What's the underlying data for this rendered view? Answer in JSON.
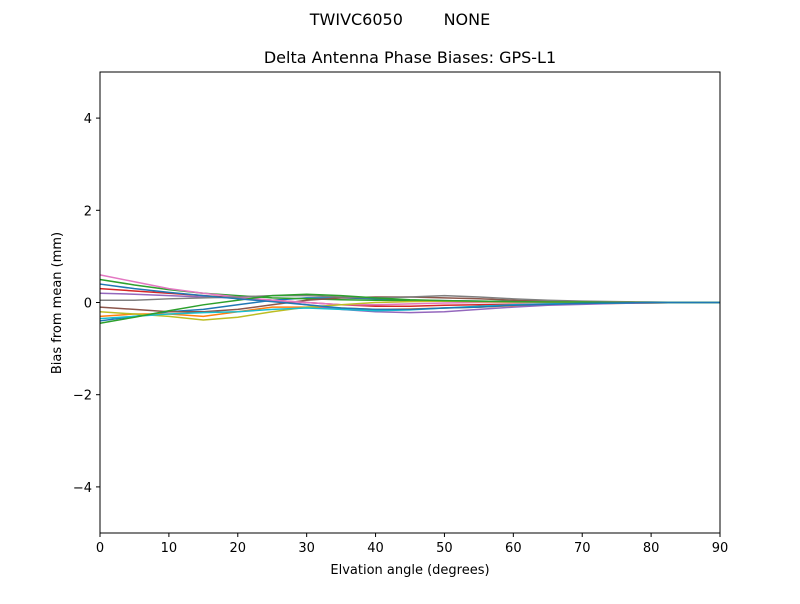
{
  "chart_data": {
    "type": "line",
    "suptitle": "TWIVC6050        NONE",
    "title": "Delta Antenna Phase Biases: GPS-L1",
    "xlabel": "Elvation angle (degrees)",
    "ylabel": "Bias from mean (mm)",
    "xlim": [
      0,
      90
    ],
    "xticks": [
      0,
      10,
      20,
      30,
      40,
      50,
      60,
      70,
      80,
      90
    ],
    "ylim": [
      -5,
      5
    ],
    "yticks": [
      {
        "value": -4,
        "label": "−4"
      },
      {
        "value": -2,
        "label": "−2"
      },
      0,
      2,
      4
    ],
    "grid": false,
    "x": [
      0,
      5,
      10,
      15,
      20,
      25,
      30,
      35,
      40,
      45,
      50,
      55,
      60,
      65,
      70,
      75,
      80,
      85,
      90
    ],
    "series": [
      {
        "color": "#1f77b4",
        "values": [
          -0.4,
          -0.3,
          -0.2,
          -0.15,
          -0.05,
          0.05,
          0.1,
          0.1,
          0.08,
          0.05,
          0.04,
          0.03,
          0.02,
          0.01,
          0.01,
          0.01,
          0,
          0,
          0
        ]
      },
      {
        "color": "#ff7f0e",
        "values": [
          -0.3,
          -0.25,
          -0.25,
          -0.3,
          -0.2,
          -0.1,
          -0.1,
          -0.12,
          -0.15,
          -0.14,
          -0.12,
          -0.1,
          -0.07,
          -0.05,
          -0.03,
          -0.02,
          -0.01,
          0,
          0
        ]
      },
      {
        "color": "#2ca02c",
        "values": [
          0.5,
          0.38,
          0.28,
          0.2,
          0.15,
          0.1,
          0.08,
          0.06,
          0.05,
          0.04,
          0.03,
          0.02,
          0.02,
          0.01,
          0.01,
          0.01,
          0,
          0,
          0
        ]
      },
      {
        "color": "#d62728",
        "values": [
          0.3,
          0.25,
          0.2,
          0.15,
          0.1,
          0.05,
          0,
          -0.05,
          -0.08,
          -0.08,
          -0.06,
          -0.05,
          -0.04,
          -0.03,
          -0.02,
          -0.01,
          0,
          0,
          0
        ]
      },
      {
        "color": "#9467bd",
        "values": [
          0.2,
          0.18,
          0.15,
          0.12,
          0.1,
          0.05,
          -0.05,
          -0.15,
          -0.2,
          -0.22,
          -0.2,
          -0.15,
          -0.1,
          -0.06,
          -0.04,
          -0.02,
          -0.01,
          0,
          0
        ]
      },
      {
        "color": "#8c564b",
        "values": [
          -0.1,
          -0.15,
          -0.2,
          -0.2,
          -0.15,
          -0.05,
          0.05,
          0.1,
          0.12,
          0.12,
          0.1,
          0.08,
          0.05,
          0.03,
          0.02,
          0.01,
          0,
          0,
          0
        ]
      },
      {
        "color": "#e377c2",
        "values": [
          0.6,
          0.45,
          0.3,
          0.2,
          0.12,
          0.05,
          0,
          -0.05,
          -0.05,
          -0.03,
          -0.01,
          0,
          0,
          0,
          0,
          0,
          0,
          0,
          0
        ]
      },
      {
        "color": "#7f7f7f",
        "values": [
          0.05,
          0.05,
          0.08,
          0.1,
          0.12,
          0.15,
          0.15,
          0.12,
          0.1,
          0.12,
          0.15,
          0.12,
          0.08,
          0.05,
          0.03,
          0.02,
          0.01,
          0,
          0
        ]
      },
      {
        "color": "#bcbd22",
        "values": [
          -0.2,
          -0.25,
          -0.3,
          -0.38,
          -0.32,
          -0.2,
          -0.1,
          -0.05,
          0,
          0.02,
          0.03,
          0.02,
          0.01,
          0.01,
          0.01,
          0,
          0,
          0,
          0
        ]
      },
      {
        "color": "#17becf",
        "values": [
          -0.35,
          -0.3,
          -0.25,
          -0.22,
          -0.2,
          -0.15,
          -0.12,
          -0.15,
          -0.18,
          -0.16,
          -0.12,
          -0.08,
          -0.05,
          -0.03,
          -0.02,
          -0.01,
          0,
          0,
          0
        ]
      },
      {
        "color": "#2ca02c",
        "values": [
          -0.45,
          -0.32,
          -0.18,
          -0.05,
          0.05,
          0.15,
          0.18,
          0.15,
          0.1,
          0.06,
          0.04,
          0.03,
          0.02,
          0.01,
          0.01,
          0,
          0,
          0,
          0
        ]
      },
      {
        "color": "#1f77b4",
        "values": [
          0.4,
          0.3,
          0.22,
          0.15,
          0.08,
          0.02,
          -0.05,
          -0.12,
          -0.15,
          -0.15,
          -0.12,
          -0.1,
          -0.06,
          -0.04,
          -0.02,
          -0.01,
          0,
          0,
          0
        ]
      }
    ]
  }
}
